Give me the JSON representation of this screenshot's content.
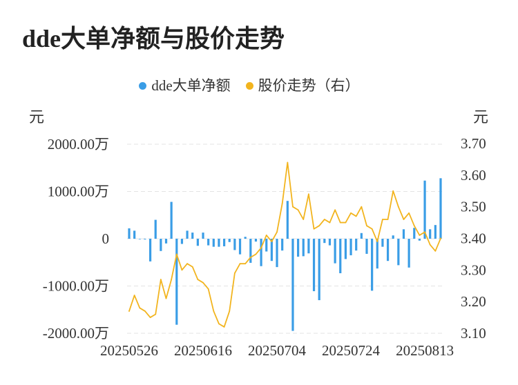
{
  "chart_data": {
    "type": "bar",
    "title": "dde大单净额与股价走势",
    "ylabel": "元",
    "y2label": "元",
    "ylim": [
      -2000,
      2000
    ],
    "y2lim": [
      3.1,
      3.7
    ],
    "yticks": [
      {
        "value": 2000,
        "label": "2000.00万"
      },
      {
        "value": 1000,
        "label": "1000.00万"
      },
      {
        "value": 0,
        "label": "0"
      },
      {
        "value": -1000,
        "label": "-1000.00万"
      },
      {
        "value": -2000,
        "label": "-2000.00万"
      }
    ],
    "y2ticks": [
      {
        "value": 3.7,
        "label": "3.70"
      },
      {
        "value": 3.6,
        "label": "3.60"
      },
      {
        "value": 3.5,
        "label": "3.50"
      },
      {
        "value": 3.4,
        "label": "3.40"
      },
      {
        "value": 3.3,
        "label": "3.30"
      },
      {
        "value": 3.2,
        "label": "3.20"
      },
      {
        "value": 3.1,
        "label": "3.10"
      }
    ],
    "x_tick_labels": [
      "20250526",
      "20250616",
      "20250704",
      "20250724",
      "20250813"
    ],
    "legend": "top-center",
    "grid": true,
    "series": [
      {
        "name": "dde大单净额",
        "type": "bar",
        "axis": "left",
        "color": "#3a9de6",
        "values": [
          220,
          170,
          -10,
          -15,
          -480,
          400,
          -260,
          -100,
          780,
          -1820,
          -110,
          170,
          130,
          -150,
          130,
          -140,
          -170,
          -170,
          -160,
          -70,
          -240,
          -330,
          40,
          -510,
          -60,
          -580,
          -270,
          -470,
          -600,
          -250,
          800,
          -1950,
          -380,
          -370,
          -310,
          -1110,
          -1300,
          -90,
          -140,
          -520,
          -730,
          -430,
          -350,
          -250,
          120,
          -320,
          -1100,
          -630,
          -170,
          -470,
          70,
          -560,
          200,
          -610,
          230,
          -40,
          1230,
          200,
          290,
          1280
        ]
      },
      {
        "name": "股价走势（右）",
        "type": "line",
        "axis": "right",
        "color": "#f2b41e",
        "values": [
          3.17,
          3.22,
          3.18,
          3.17,
          3.15,
          3.16,
          3.27,
          3.21,
          3.27,
          3.35,
          3.3,
          3.32,
          3.31,
          3.27,
          3.26,
          3.24,
          3.17,
          3.13,
          3.12,
          3.17,
          3.29,
          3.32,
          3.32,
          3.34,
          3.35,
          3.37,
          3.41,
          3.39,
          3.42,
          3.51,
          3.64,
          3.5,
          3.49,
          3.46,
          3.54,
          3.43,
          3.44,
          3.46,
          3.45,
          3.49,
          3.45,
          3.45,
          3.48,
          3.47,
          3.5,
          3.44,
          3.43,
          3.39,
          3.46,
          3.46,
          3.55,
          3.5,
          3.46,
          3.48,
          3.44,
          3.41,
          3.42,
          3.38,
          3.36,
          3.4
        ]
      }
    ]
  }
}
